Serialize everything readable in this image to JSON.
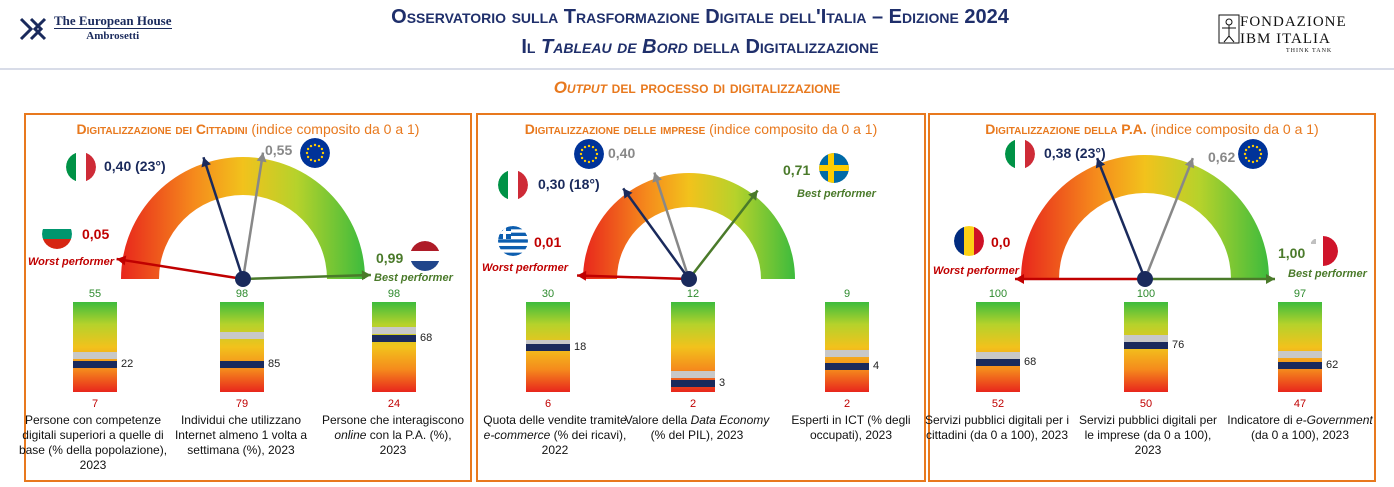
{
  "header": {
    "org_name": "The European House",
    "org_sub": "Ambrosetti",
    "title_line1": "Osservatorio sulla Trasformazione Digitale dell'Italia – Edizione 2024",
    "title_line2": "Il Tableau de Bord della Digitalizzazione",
    "partner_line1": "FONDAZIONE",
    "partner_line2": "IBM ITALIA",
    "partner_line3": "THINK TANK"
  },
  "subtitle": {
    "italic": "Output",
    "rest": " del processo di digitalizzazione"
  },
  "colors": {
    "accent": "#e8791e",
    "navy": "#1a2a5c",
    "worst": "#c00000",
    "best": "#4a7a2a",
    "eu": "#888888"
  },
  "chart_data": [
    {
      "type": "gauge",
      "title": "Digitalizzazione dei Cittadini",
      "subtitle": "(indice composito da 0 a 1)",
      "italy": {
        "label": "0,40 (23°)",
        "value": 0.4,
        "flag": "italy-flag"
      },
      "eu": {
        "label": "0,55",
        "value": 0.55,
        "flag": "eu-flag"
      },
      "worst": {
        "label": "0,05",
        "value": 0.05,
        "text": "Worst performer",
        "flag": "bulgaria-flag"
      },
      "best": {
        "label": "0,99",
        "value": 0.99,
        "text": "Best performer",
        "flag": "netherlands-flag"
      },
      "indicators": [
        {
          "max_label": "55",
          "min_label": "7",
          "max": 55,
          "min": 7,
          "italy": 22,
          "italy_label": "22",
          "eu": 27,
          "caption": [
            "Persone con competenze",
            "digitali superiori a quelle di",
            "base (% della popolazione),",
            "2023"
          ]
        },
        {
          "max_label": "98",
          "min_label": "79",
          "max": 98,
          "min": 79,
          "italy": 85,
          "italy_label": "85",
          "eu": 91,
          "caption": [
            "Individui che utilizzano",
            "Internet almeno 1 volta a",
            "settimana (%), 2023"
          ]
        },
        {
          "max_label": "98",
          "min_label": "24",
          "max": 98,
          "min": 24,
          "italy": 68,
          "italy_label": "68",
          "eu": 75,
          "caption_parts": [
            [
              "Persone che interagiscono",
              ""
            ],
            [
              "",
              "online",
              " con la P.A. (%),"
            ],
            [
              "2023",
              ""
            ]
          ]
        }
      ]
    },
    {
      "type": "gauge",
      "title": "Digitalizzazione delle imprese",
      "subtitle": "(indice composito da 0 a 1)",
      "italy": {
        "label": "0,30 (18°)",
        "value": 0.3,
        "flag": "italy-flag"
      },
      "eu": {
        "label": "0,40",
        "value": 0.4,
        "flag": "eu-flag"
      },
      "worst": {
        "label": "0,01",
        "value": 0.01,
        "text": "Worst performer",
        "flag": "greece-flag"
      },
      "best": {
        "label": "0,71",
        "value": 0.71,
        "text": "Best performer",
        "flag": "sweden-flag"
      },
      "indicators": [
        {
          "max_label": "30",
          "min_label": "6",
          "max": 30,
          "min": 6,
          "italy": 18,
          "italy_label": "18",
          "eu": 19
        },
        {
          "max_label": "12",
          "min_label": "2",
          "max": 12,
          "min": 2,
          "italy": 3,
          "italy_label": "3",
          "eu": 4
        },
        {
          "max_label": "9",
          "min_label": "2",
          "max": 9,
          "min": 2,
          "italy": 4,
          "italy_label": "4",
          "eu": 5
        }
      ]
    },
    {
      "type": "gauge",
      "title": "Digitalizzazione della P.A.",
      "subtitle": "(indice composito da 0 a 1)",
      "italy": {
        "label": "0,38 (23°)",
        "value": 0.38,
        "flag": "italy-flag"
      },
      "eu": {
        "label": "0,62",
        "value": 0.62,
        "flag": "eu-flag"
      },
      "worst": {
        "label": "0,0",
        "value": 0.0,
        "text": "Worst performer",
        "flag": "romania-flag"
      },
      "best": {
        "label": "1,00",
        "value": 1.0,
        "text": "Best performer",
        "flag": "malta-flag"
      },
      "indicators": [
        {
          "max_label": "100",
          "min_label": "52",
          "max": 100,
          "min": 52,
          "italy": 68,
          "italy_label": "68",
          "eu": 72
        },
        {
          "max_label": "100",
          "min_label": "50",
          "max": 100,
          "min": 50,
          "italy": 76,
          "italy_label": "76",
          "eu": 80
        },
        {
          "max_label": "97",
          "min_label": "47",
          "max": 97,
          "min": 47,
          "italy": 62,
          "italy_label": "62",
          "eu": 68
        }
      ]
    }
  ],
  "captions": {
    "c1a": "Persone con competenze",
    "c1b": "digitali superiori a quelle di",
    "c1c": "base (% della popolazione),",
    "c1d": "2023",
    "c2a": "Individui che utilizzano",
    "c2b": "Internet almeno 1 volta a",
    "c2c": "settimana (%), 2023",
    "c3a": "Persone che interagiscono",
    "c3b_it": "online",
    "c3b_rest": " con la P.A. (%),",
    "c3c": "2023",
    "c4a": "Quota delle vendite tramite",
    "c4b_it": "e-commerce",
    "c4b_rest": " (% dei ricavi),",
    "c4c": "2022",
    "c5a_pre": "Valore della ",
    "c5a_it": "Data Economy",
    "c5b": "(% del PIL), 2023",
    "c6a": "Esperti in ICT (% degli",
    "c6b": "occupati), 2023",
    "c7a": "Servizi pubblici digitali per i",
    "c7b": "cittadini (da 0 a 100), 2023",
    "c8a": "Servizi pubblici digitali per",
    "c8b": "le imprese (da 0 a 100),",
    "c8c": "2023",
    "c9a_pre": "Indicatore di ",
    "c9a_it": "e-Government",
    "c9b": "(da 0 a 100), 2023"
  }
}
